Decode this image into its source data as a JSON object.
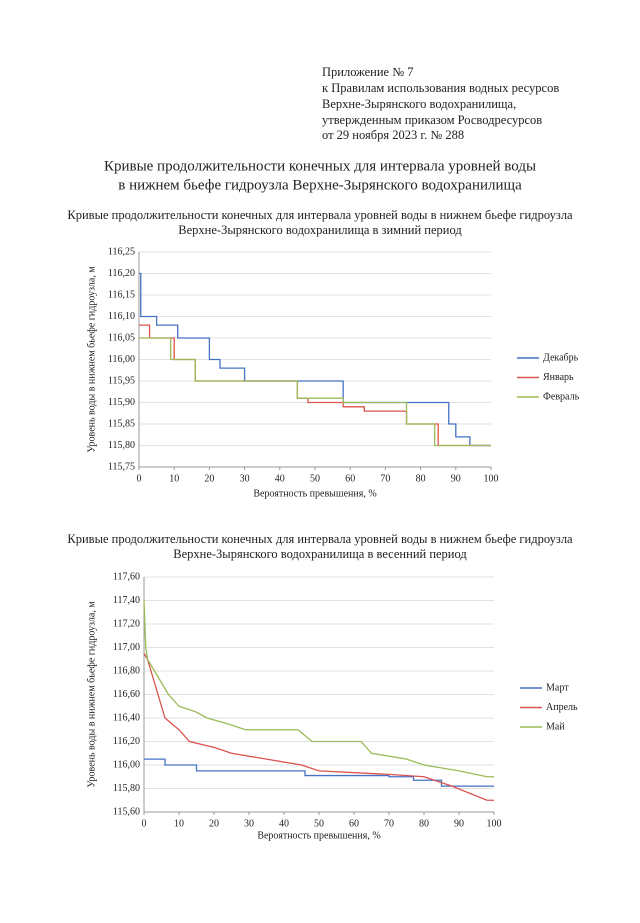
{
  "header": {
    "appendix": [
      "Приложение № 7",
      "к Правилам использования водных ресурсов",
      "Верхне-Зырянского водохранилища,",
      "утвержденным приказом Росводресурсов",
      "от 29 ноября 2023 г. № 288"
    ],
    "title": [
      "Кривые продолжительности конечных для интервала уровней воды",
      "в нижнем бьефе гидроузла Верхне-Зырянского водохранилища"
    ]
  },
  "chart_data": [
    {
      "type": "line",
      "title": [
        "Кривые продолжительности конечных для интервала уровней воды в нижнем бьефе гидроузла",
        "Верхне-Зырянского водохранилища в зимний период"
      ],
      "x_label": "Вероятность превышения, %",
      "y_label": "Уровень воды в нижнем бьефе гидроузла, м",
      "xlim": [
        0,
        100
      ],
      "xticks": [
        0,
        10,
        20,
        30,
        40,
        50,
        60,
        70,
        80,
        90,
        100
      ],
      "ylim": [
        115.75,
        116.25
      ],
      "yticks": [
        {
          "value": 115.75,
          "label": "115,75"
        },
        {
          "value": 115.8,
          "label": "115,80"
        },
        {
          "value": 115.85,
          "label": "115,85"
        },
        {
          "value": 115.9,
          "label": "115,90"
        },
        {
          "value": 115.95,
          "label": "115,95"
        },
        {
          "value": 116.0,
          "label": "116,00"
        },
        {
          "value": 116.05,
          "label": "116,05"
        },
        {
          "value": 116.1,
          "label": "116,10"
        },
        {
          "value": 116.15,
          "label": "116,15"
        },
        {
          "value": 116.2,
          "label": "116,20"
        },
        {
          "value": 116.25,
          "label": "116,25"
        }
      ],
      "grid": true,
      "legend": "right",
      "series": [
        {
          "name": "Декабрь",
          "color": "#4472c4",
          "x": [
            0,
            0.5,
            0.5,
            5,
            5,
            11,
            11,
            20,
            20,
            23,
            23,
            30,
            30,
            58,
            58,
            88,
            88,
            90,
            90,
            94,
            94,
            100
          ],
          "values": [
            116.2,
            116.2,
            116.1,
            116.1,
            116.08,
            116.08,
            116.05,
            116.05,
            116.0,
            116.0,
            115.98,
            115.98,
            115.95,
            115.95,
            115.9,
            115.9,
            115.85,
            115.85,
            115.82,
            115.82,
            115.8,
            115.8
          ]
        },
        {
          "name": "Январь",
          "color": "#d9534f",
          "x": [
            0,
            3,
            3,
            10,
            10,
            16,
            16,
            45,
            45,
            48,
            48,
            58,
            58,
            64,
            64,
            76,
            76,
            85,
            85,
            100
          ],
          "values": [
            116.08,
            116.08,
            116.05,
            116.05,
            116.0,
            116.0,
            115.95,
            115.95,
            115.91,
            115.91,
            115.9,
            115.9,
            115.89,
            115.89,
            115.88,
            115.88,
            115.85,
            115.85,
            115.8,
            115.8
          ]
        },
        {
          "name": "Февраль",
          "color": "#9bbb59",
          "x": [
            0,
            9,
            9,
            16,
            16,
            45,
            45,
            58,
            58,
            76,
            76,
            84,
            84,
            100
          ],
          "values": [
            116.05,
            116.05,
            116.0,
            116.0,
            115.95,
            115.95,
            115.91,
            115.91,
            115.9,
            115.9,
            115.85,
            115.85,
            115.8,
            115.8
          ]
        }
      ]
    },
    {
      "type": "line",
      "title": [
        "Кривые продолжительности конечных для интервала уровней воды в нижнем бьефе гидроузла",
        "Верхне-Зырянского водохранилища в весенний период"
      ],
      "x_label": "Вероятность превышения, %",
      "y_label": "Уровень воды в нижнем бьефе гидроузла, м",
      "xlim": [
        0,
        100
      ],
      "xticks": [
        0,
        10,
        20,
        30,
        40,
        50,
        60,
        70,
        80,
        90,
        100
      ],
      "ylim": [
        115.6,
        117.6
      ],
      "yticks": [
        {
          "value": 115.6,
          "label": "115,60"
        },
        {
          "value": 115.8,
          "label": "115,80"
        },
        {
          "value": 116.0,
          "label": "116,00"
        },
        {
          "value": 116.2,
          "label": "116,20"
        },
        {
          "value": 116.4,
          "label": "116,40"
        },
        {
          "value": 116.6,
          "label": "116,60"
        },
        {
          "value": 116.8,
          "label": "116,80"
        },
        {
          "value": 117.0,
          "label": "117,00"
        },
        {
          "value": 117.2,
          "label": "117,20"
        },
        {
          "value": 117.4,
          "label": "117,40"
        },
        {
          "value": 117.6,
          "label": "117,60"
        }
      ],
      "grid": true,
      "legend": "right",
      "series": [
        {
          "name": "Март",
          "color": "#4472c4",
          "x": [
            0,
            6,
            6,
            15,
            15,
            46,
            46,
            70,
            70,
            77,
            77,
            85,
            85,
            100
          ],
          "values": [
            116.05,
            116.05,
            116.0,
            116.0,
            115.95,
            115.95,
            115.91,
            115.91,
            115.9,
            115.9,
            115.87,
            115.87,
            115.82,
            115.82
          ]
        },
        {
          "name": "Апрель",
          "color": "#d9534f",
          "x": [
            0,
            1,
            2,
            3,
            4,
            5,
            6,
            8,
            10,
            13,
            20,
            25,
            35,
            45,
            50,
            70,
            80,
            85,
            88,
            98,
            100
          ],
          "values": [
            116.95,
            116.9,
            116.8,
            116.7,
            116.6,
            116.5,
            116.4,
            116.35,
            116.3,
            116.2,
            116.15,
            116.1,
            116.05,
            116.0,
            115.95,
            115.92,
            115.9,
            115.85,
            115.82,
            115.7,
            115.7
          ]
        },
        {
          "name": "Май",
          "color": "#9bbb59",
          "x": [
            0,
            0.5,
            1,
            3,
            5,
            7,
            10,
            15,
            18,
            24,
            29,
            44,
            48,
            62,
            65,
            75,
            80,
            90,
            98,
            100
          ],
          "values": [
            117.4,
            117.0,
            116.9,
            116.8,
            116.7,
            116.6,
            116.5,
            116.45,
            116.4,
            116.35,
            116.3,
            116.3,
            116.2,
            116.2,
            116.1,
            116.05,
            116.0,
            115.95,
            115.9,
            115.9
          ]
        }
      ]
    }
  ]
}
